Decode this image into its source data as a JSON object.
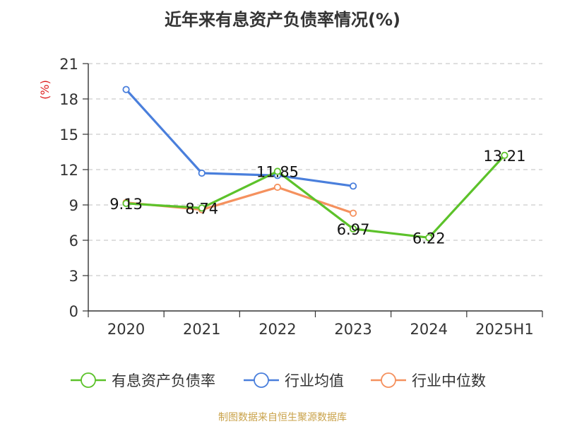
{
  "chart_data": {
    "type": "line",
    "title": "近年来有息资产负债率情况(%)",
    "ylabel": "(%)",
    "xlabel": "",
    "categories": [
      "2020",
      "2021",
      "2022",
      "2023",
      "2024",
      "2025H1"
    ],
    "ylim": [
      0,
      21
    ],
    "yticks": [
      0,
      3,
      6,
      9,
      12,
      15,
      18,
      21
    ],
    "grid": "horizontal-dashed",
    "legend_position": "bottom",
    "series": [
      {
        "name": "有息资产负债率",
        "color": "#5cc22a",
        "values": [
          9.13,
          8.74,
          11.85,
          6.97,
          6.22,
          13.21
        ],
        "labels": [
          "9.13",
          "8.74",
          "11.85",
          "6.97",
          "6.22",
          "13.21"
        ]
      },
      {
        "name": "行业均值",
        "color": "#4a7fdc",
        "values": [
          18.8,
          11.7,
          11.5,
          10.6,
          null,
          null
        ]
      },
      {
        "name": "行业中位数",
        "color": "#f5915e",
        "values": [
          9.2,
          8.6,
          10.5,
          8.3,
          null,
          null
        ]
      }
    ],
    "source": "制图数据来自恒生聚源数据库"
  }
}
